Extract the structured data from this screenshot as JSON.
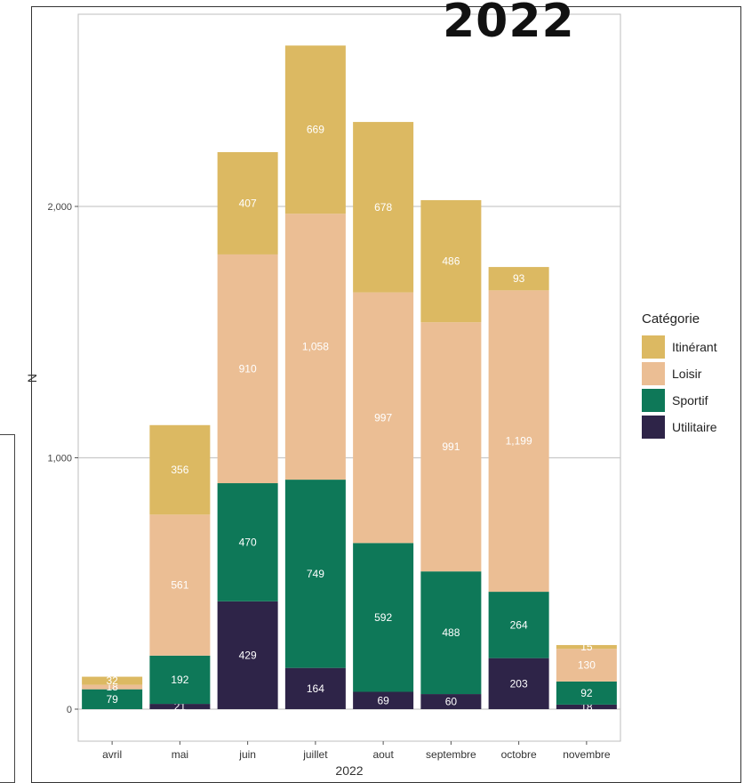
{
  "title_overlay": "2022",
  "legend": {
    "title": "Catégorie",
    "items": [
      {
        "label": "Itinérant",
        "color": "#dcb962"
      },
      {
        "label": "Loisir",
        "color": "#ebbe94"
      },
      {
        "label": "Sportif",
        "color": "#0e7858"
      },
      {
        "label": "Utilitaire",
        "color": "#2e2448"
      }
    ]
  },
  "chart_data": {
    "type": "bar",
    "stacked": true,
    "xlabel": "2022",
    "ylabel": "N",
    "ylim": [
      0,
      2700
    ],
    "yticks": [
      0,
      1000,
      2000
    ],
    "ytick_labels": [
      "0",
      "1,000",
      "2,000"
    ],
    "grid": true,
    "legend_position": "right",
    "categories": [
      "avril",
      "mai",
      "juin",
      "juillet",
      "aout",
      "septembre",
      "octobre",
      "novembre"
    ],
    "series": [
      {
        "name": "Utilitaire",
        "color": "#2e2448",
        "values": [
          0,
          21,
          429,
          164,
          69,
          60,
          203,
          18
        ]
      },
      {
        "name": "Sportif",
        "color": "#0e7858",
        "values": [
          79,
          192,
          470,
          749,
          592,
          488,
          264,
          92
        ]
      },
      {
        "name": "Loisir",
        "color": "#ebbe94",
        "values": [
          18,
          561,
          910,
          1058,
          997,
          991,
          1199,
          130
        ]
      },
      {
        "name": "Itinérant",
        "color": "#dcb962",
        "values": [
          32,
          356,
          407,
          669,
          678,
          486,
          93,
          15
        ]
      }
    ],
    "data_labels": [
      [
        "",
        "21",
        "429",
        "164",
        "69",
        "60",
        "203",
        "18"
      ],
      [
        "79",
        "192",
        "470",
        "749",
        "592",
        "488",
        "264",
        "92"
      ],
      [
        "18",
        "561",
        "910",
        "1,058",
        "997",
        "991",
        "1,199",
        "130"
      ],
      [
        "32",
        "356",
        "407",
        "669",
        "678",
        "486",
        "93",
        "15"
      ]
    ]
  }
}
